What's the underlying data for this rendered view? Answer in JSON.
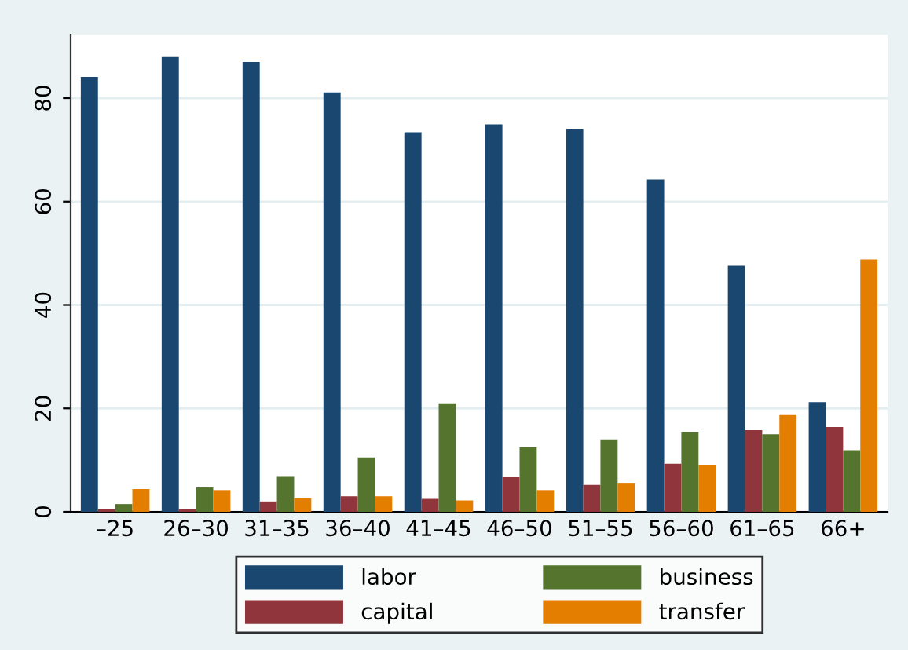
{
  "chart_data": {
    "type": "bar",
    "categories": [
      "–25",
      "26–30",
      "31–35",
      "36–40",
      "41–45",
      "46–50",
      "51–55",
      "56–60",
      "61–65",
      "66+"
    ],
    "series": [
      {
        "name": "labor",
        "color": "#1a476f",
        "values": [
          84.1,
          88.1,
          87.0,
          81.1,
          73.4,
          74.9,
          74.1,
          64.3,
          47.6,
          21.2
        ]
      },
      {
        "name": "capital",
        "color": "#90353b",
        "values": [
          0.5,
          0.5,
          2.0,
          3.0,
          2.5,
          6.7,
          5.2,
          9.3,
          15.8,
          16.4
        ]
      },
      {
        "name": "business",
        "color": "#55752f",
        "values": [
          1.5,
          4.7,
          6.9,
          10.5,
          21.0,
          12.5,
          14.0,
          15.5,
          15.0,
          11.9
        ]
      },
      {
        "name": "transfer",
        "color": "#e37e00",
        "values": [
          4.4,
          4.2,
          2.6,
          3.0,
          2.2,
          4.2,
          5.6,
          9.1,
          18.7,
          48.8
        ]
      }
    ],
    "ylim": [
      0,
      92.3
    ],
    "yticks": [
      0,
      20,
      40,
      60,
      80
    ],
    "grid": "y",
    "legend": "bottom"
  }
}
